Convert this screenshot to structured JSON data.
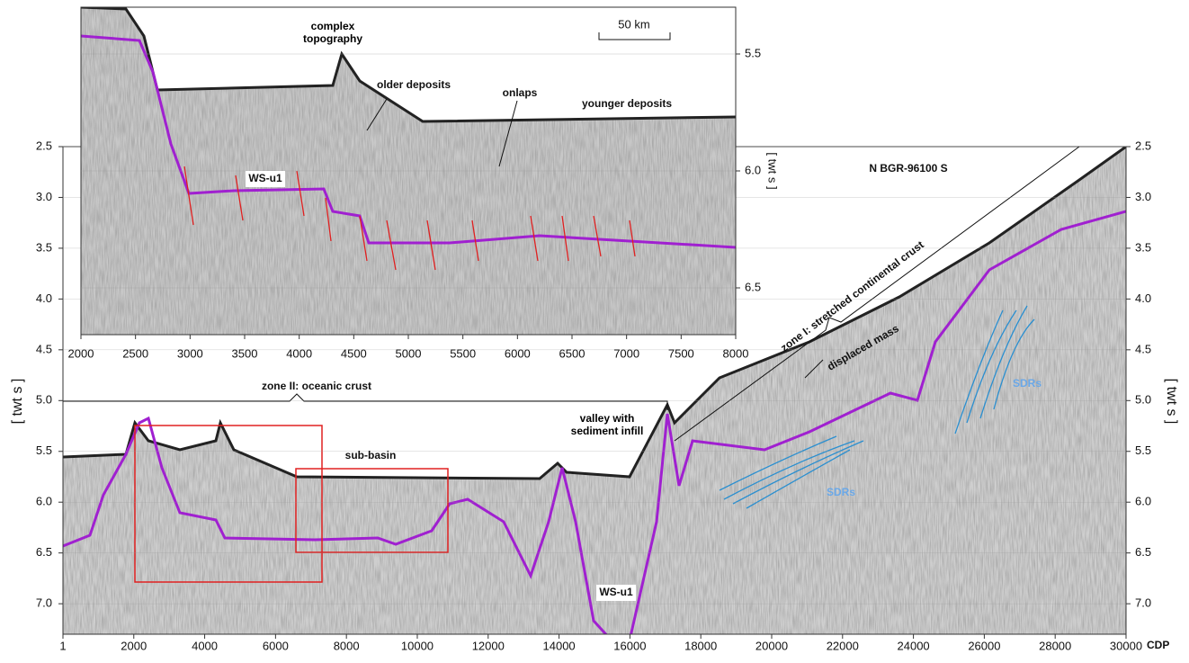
{
  "main": {
    "title": "N BGR-96100 S",
    "x_label": "CDP",
    "y_label": "[ twt s ]",
    "y2_label": "[ twt s ]",
    "xlim": [
      1,
      30000
    ],
    "xticks": [
      1,
      2000,
      4000,
      6000,
      8000,
      10000,
      12000,
      14000,
      16000,
      18000,
      20000,
      22000,
      24000,
      26000,
      28000,
      30000
    ],
    "ylim": [
      2.5,
      7.3
    ],
    "yticks": [
      2.5,
      {
        "value": 3,
        "label": "3.0"
      },
      3.5,
      {
        "value": 4,
        "label": "4.0"
      },
      4.5,
      {
        "value": 5,
        "label": "5.0"
      },
      5.5,
      {
        "value": 6,
        "label": "6.0"
      },
      6.5,
      {
        "value": 7,
        "label": "7.0"
      }
    ],
    "annotations": [
      "zone II: oceanic crust",
      "zone I: stretched continental crust",
      "displaced mass",
      "SDRs",
      "SDRs",
      "sub-basin",
      "valley with sediment infill",
      "WS-u1"
    ]
  },
  "inset": {
    "y_label": "[ twt s ]",
    "xlim": [
      2000,
      8000
    ],
    "xticks": [
      2000,
      2500,
      3000,
      3500,
      4000,
      4500,
      5000,
      5500,
      6000,
      6500,
      7000,
      7500,
      8000
    ],
    "ylim": [
      5.3,
      6.7
    ],
    "yticks": [
      5.5,
      {
        "value": 6,
        "label": "6.0"
      },
      6.5
    ],
    "scale_bar": "50 km",
    "annotations": [
      "complex topography",
      "older deposits",
      "onlaps",
      "younger deposits",
      "WS-u1"
    ]
  }
}
